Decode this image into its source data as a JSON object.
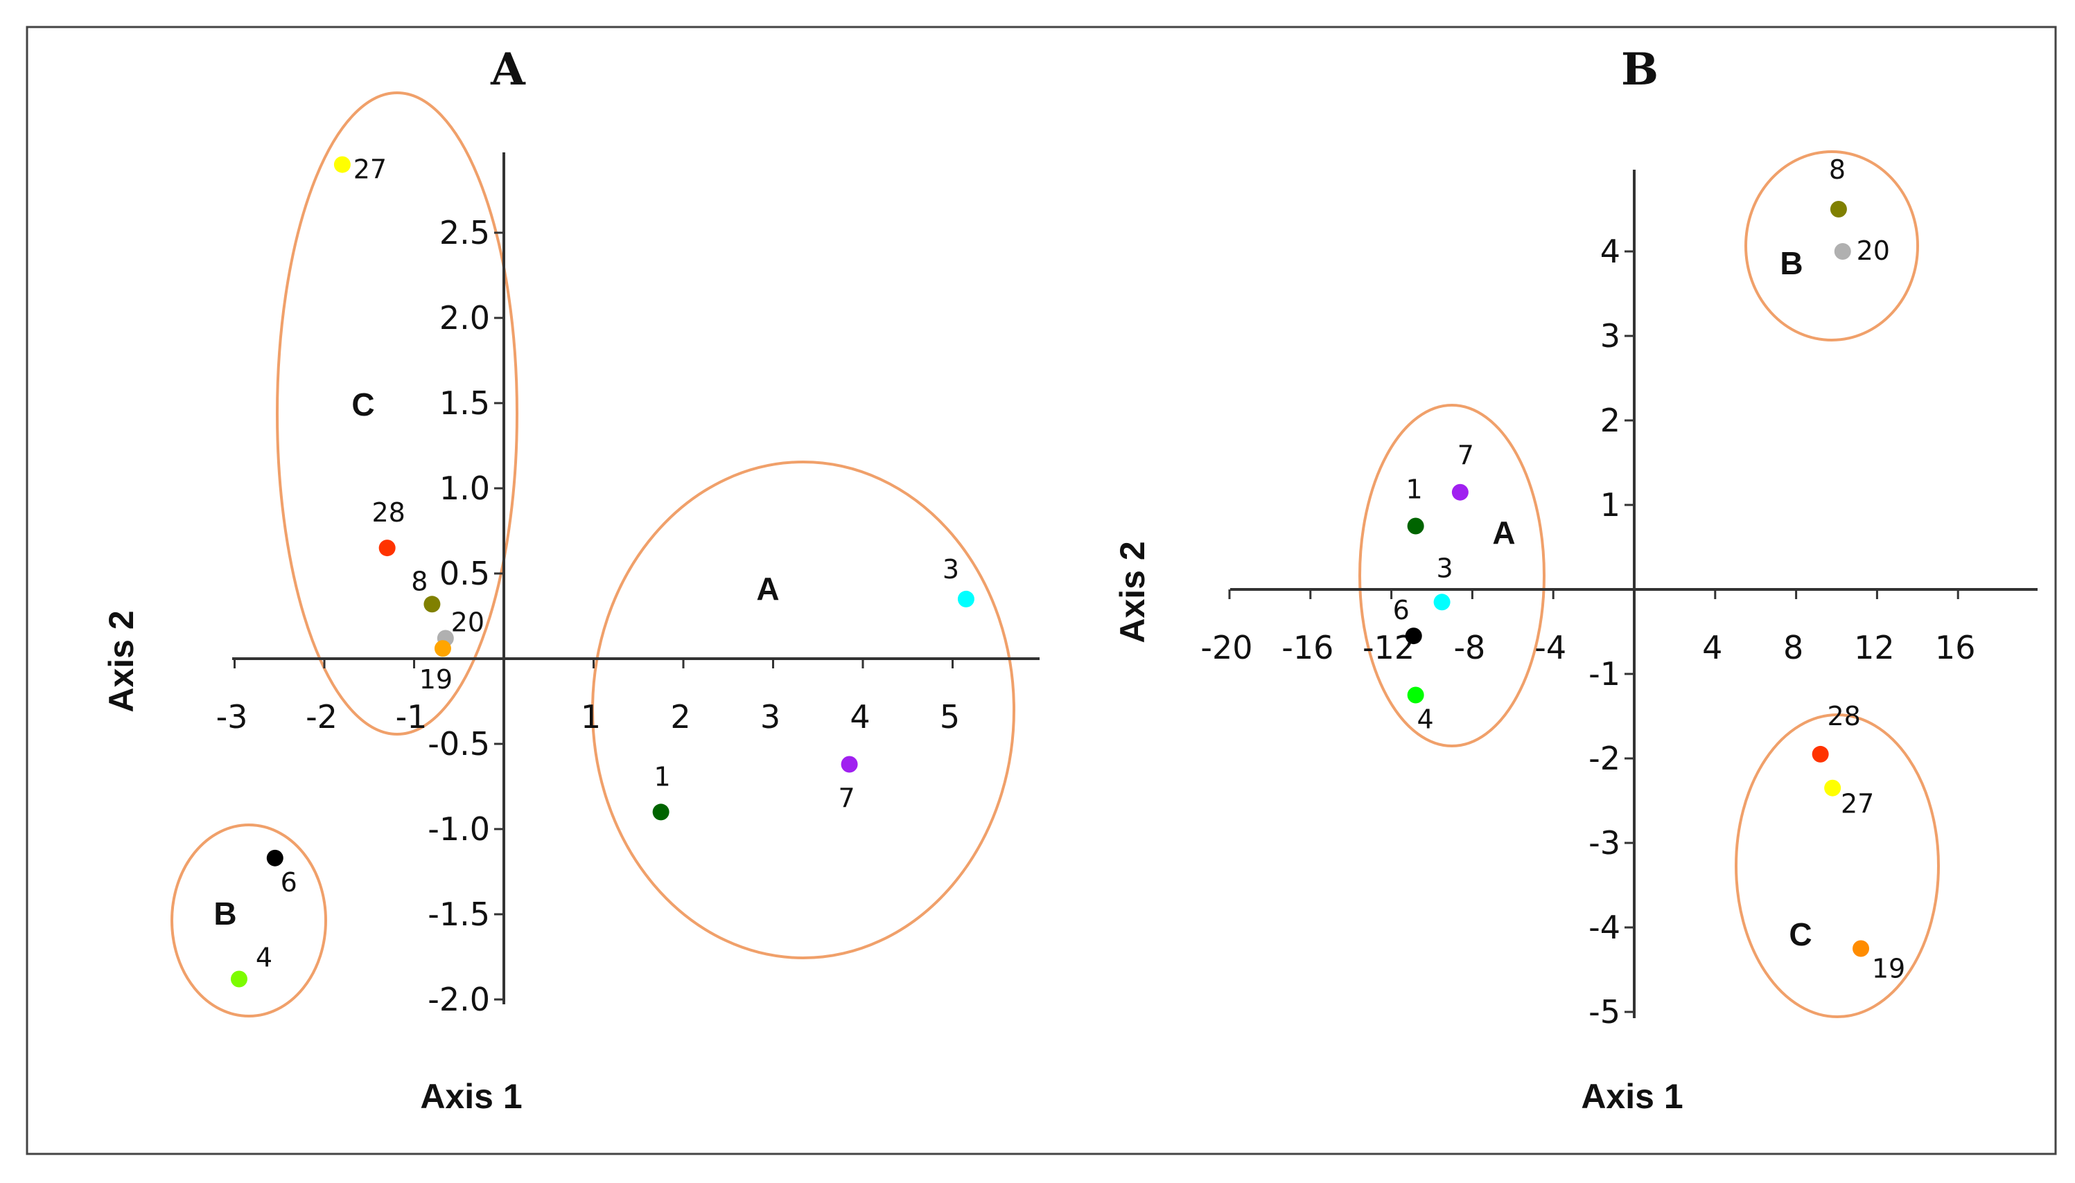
{
  "chart_data": [
    {
      "type": "scatter",
      "title": "A",
      "xlabel": "Axis 1",
      "ylabel": "Axis 2",
      "xlim": [
        -3,
        5.4
      ],
      "ylim": [
        -2.0,
        2.9
      ],
      "x_ticks": [
        -3,
        -2,
        -1,
        1,
        2,
        3,
        4,
        5
      ],
      "y_ticks": [
        2.5,
        2.0,
        1.5,
        1.0,
        0.5,
        -0.5,
        -1.0,
        -1.5,
        -2.0
      ],
      "x_tick_labels": [
        "-3",
        "-2",
        "-1",
        "1",
        "2",
        "3",
        "4",
        "5"
      ],
      "y_tick_labels": [
        "2.5",
        "2.0",
        "1.5",
        "1.0",
        "0.5",
        "-0.5",
        "-1.0",
        "-1.5",
        "-2.0"
      ],
      "grid": false,
      "points": [
        {
          "label": "27",
          "x": -1.8,
          "y": 2.9,
          "color": "#ffff00"
        },
        {
          "label": "28",
          "x": -1.3,
          "y": 0.65,
          "color": "#ff3300"
        },
        {
          "label": "8",
          "x": -0.8,
          "y": 0.32,
          "color": "#808000"
        },
        {
          "label": "20",
          "x": -0.65,
          "y": 0.12,
          "color": "#b0b0b0"
        },
        {
          "label": "19",
          "x": -0.68,
          "y": 0.06,
          "color": "#ffa500"
        },
        {
          "label": "3",
          "x": 5.15,
          "y": 0.35,
          "color": "#00ffff"
        },
        {
          "label": "7",
          "x": 3.85,
          "y": -0.62,
          "color": "#a020f0"
        },
        {
          "label": "1",
          "x": 1.75,
          "y": -0.9,
          "color": "#006400"
        },
        {
          "label": "6",
          "x": -2.55,
          "y": -1.17,
          "color": "#000000"
        },
        {
          "label": "4",
          "x": -2.95,
          "y": -1.88,
          "color": "#7cfc00"
        }
      ],
      "clusters": [
        "C",
        "A",
        "B"
      ]
    },
    {
      "type": "scatter",
      "title": "B",
      "xlabel": "Axis 1",
      "ylabel": "Axis 2",
      "xlim": [
        -20,
        20
      ],
      "ylim": [
        -5,
        5
      ],
      "x_ticks": [
        -20,
        -16,
        -12,
        -8,
        -4,
        4,
        8,
        12,
        16
      ],
      "y_ticks": [
        4,
        3,
        2,
        1,
        -1,
        -2,
        -3,
        -4,
        -5
      ],
      "x_tick_labels": [
        "-20",
        "-16",
        "-12",
        "-8",
        "-4",
        "4",
        "8",
        "12",
        "16"
      ],
      "y_tick_labels": [
        "4",
        "3",
        "2",
        "1",
        "-1",
        "-2",
        "-3",
        "-4",
        "-5"
      ],
      "grid": false,
      "points": [
        {
          "label": "8",
          "x": 10.1,
          "y": 4.5,
          "color": "#808000"
        },
        {
          "label": "20",
          "x": 10.3,
          "y": 4.0,
          "color": "#b0b0b0"
        },
        {
          "label": "7",
          "x": -8.6,
          "y": 1.15,
          "color": "#a020f0"
        },
        {
          "label": "1",
          "x": -10.8,
          "y": 0.75,
          "color": "#006400"
        },
        {
          "label": "3",
          "x": -9.5,
          "y": -0.15,
          "color": "#00ffff"
        },
        {
          "label": "6",
          "x": -10.9,
          "y": -0.55,
          "color": "#000000"
        },
        {
          "label": "4",
          "x": -10.8,
          "y": -1.25,
          "color": "#00ff00"
        },
        {
          "label": "28",
          "x": 9.2,
          "y": -1.95,
          "color": "#ff3300"
        },
        {
          "label": "27",
          "x": 9.8,
          "y": -2.35,
          "color": "#ffff00"
        },
        {
          "label": "19",
          "x": 11.2,
          "y": -4.25,
          "color": "#ff8c00"
        }
      ],
      "clusters": [
        "A",
        "B",
        "C"
      ]
    }
  ],
  "colors": {
    "ellipse": "#f0a06a",
    "axis": "#333333",
    "border": "#444444"
  }
}
